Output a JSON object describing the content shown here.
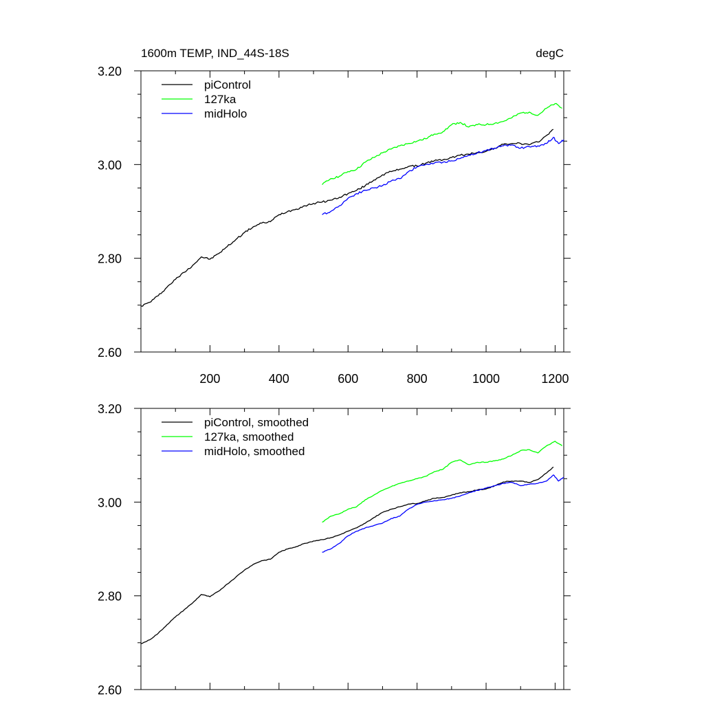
{
  "chart_data": [
    {
      "type": "line",
      "title": "1600m TEMP, IND_44S-18S",
      "units": "degC",
      "xlim": [
        0,
        1225
      ],
      "ylim": [
        2.6,
        3.2
      ],
      "xticks": [
        200,
        400,
        600,
        800,
        1000,
        1200
      ],
      "xtick_labels": [
        "200",
        "400",
        "600",
        "800",
        "1000",
        "1200"
      ],
      "yticks": [
        2.6,
        2.8,
        3.0,
        3.2
      ],
      "ytick_labels": [
        "2.60",
        "2.80",
        "3.00",
        "3.20"
      ],
      "legend_position": "top-left",
      "smoothed": false,
      "series": [
        {
          "name": "piControl",
          "color": "#000000",
          "x": [
            1,
            25,
            50,
            75,
            100,
            125,
            150,
            175,
            200,
            225,
            250,
            275,
            300,
            325,
            350,
            375,
            400,
            425,
            450,
            475,
            500,
            525,
            550,
            575,
            600,
            625,
            650,
            675,
            700,
            725,
            750,
            775,
            800,
            825,
            850,
            875,
            900,
            925,
            950,
            975,
            1000,
            1025,
            1050,
            1075,
            1100,
            1125,
            1150,
            1175,
            1195
          ],
          "values": [
            2.698,
            2.706,
            2.72,
            2.738,
            2.755,
            2.77,
            2.785,
            2.803,
            2.798,
            2.81,
            2.825,
            2.84,
            2.855,
            2.867,
            2.875,
            2.878,
            2.893,
            2.9,
            2.905,
            2.912,
            2.917,
            2.92,
            2.924,
            2.93,
            2.938,
            2.945,
            2.955,
            2.967,
            2.978,
            2.985,
            2.99,
            2.996,
            2.997,
            3.003,
            3.008,
            3.01,
            3.015,
            3.02,
            3.022,
            3.026,
            3.028,
            3.035,
            3.043,
            3.045,
            3.045,
            3.042,
            3.048,
            3.062,
            3.075
          ]
        },
        {
          "name": "127ka",
          "color": "#00ff00",
          "x": [
            525,
            550,
            575,
            600,
            625,
            650,
            675,
            700,
            725,
            750,
            775,
            800,
            825,
            850,
            875,
            900,
            925,
            950,
            975,
            1000,
            1025,
            1050,
            1075,
            1100,
            1125,
            1150,
            1175,
            1200,
            1220
          ],
          "values": [
            2.957,
            2.97,
            2.975,
            2.985,
            2.99,
            3.005,
            3.015,
            3.025,
            3.033,
            3.04,
            3.045,
            3.05,
            3.055,
            3.065,
            3.07,
            3.085,
            3.09,
            3.08,
            3.085,
            3.085,
            3.088,
            3.092,
            3.1,
            3.11,
            3.112,
            3.105,
            3.12,
            3.13,
            3.12
          ]
        },
        {
          "name": "midHolo",
          "color": "#0000ff",
          "x": [
            525,
            550,
            575,
            600,
            625,
            650,
            675,
            700,
            725,
            750,
            775,
            800,
            825,
            850,
            875,
            900,
            925,
            950,
            975,
            1000,
            1025,
            1050,
            1075,
            1100,
            1125,
            1150,
            1175,
            1195,
            1210,
            1225
          ],
          "values": [
            2.893,
            2.9,
            2.912,
            2.928,
            2.938,
            2.945,
            2.95,
            2.955,
            2.965,
            2.97,
            2.985,
            2.995,
            3.0,
            3.003,
            3.005,
            3.008,
            3.013,
            3.02,
            3.025,
            3.03,
            3.035,
            3.04,
            3.042,
            3.035,
            3.038,
            3.04,
            3.045,
            3.058,
            3.045,
            3.053
          ]
        }
      ]
    },
    {
      "type": "line",
      "xlim": [
        0,
        1225
      ],
      "ylim": [
        2.6,
        3.2
      ],
      "xticks": [
        200,
        400,
        600,
        800,
        1000,
        1200
      ],
      "yticks": [
        2.6,
        2.8,
        3.0,
        3.2
      ],
      "ytick_labels": [
        "2.60",
        "2.80",
        "3.00",
        "3.20"
      ],
      "legend_position": "top-left",
      "smoothed": true,
      "series": [
        {
          "name": "piControl, smoothed",
          "color": "#000000",
          "x": [
            1,
            25,
            50,
            75,
            100,
            125,
            150,
            175,
            200,
            225,
            250,
            275,
            300,
            325,
            350,
            375,
            400,
            425,
            450,
            475,
            500,
            525,
            550,
            575,
            600,
            625,
            650,
            675,
            700,
            725,
            750,
            775,
            800,
            825,
            850,
            875,
            900,
            925,
            950,
            975,
            1000,
            1025,
            1050,
            1075,
            1100,
            1125,
            1150,
            1175,
            1195
          ],
          "values": [
            2.698,
            2.706,
            2.72,
            2.738,
            2.755,
            2.77,
            2.785,
            2.803,
            2.798,
            2.81,
            2.825,
            2.84,
            2.855,
            2.867,
            2.875,
            2.878,
            2.893,
            2.9,
            2.905,
            2.912,
            2.917,
            2.92,
            2.924,
            2.93,
            2.938,
            2.945,
            2.955,
            2.967,
            2.978,
            2.985,
            2.99,
            2.996,
            2.997,
            3.003,
            3.008,
            3.01,
            3.015,
            3.02,
            3.022,
            3.026,
            3.028,
            3.035,
            3.043,
            3.045,
            3.045,
            3.042,
            3.048,
            3.062,
            3.075
          ]
        },
        {
          "name": "127ka, smoothed",
          "color": "#00ff00",
          "x": [
            525,
            550,
            575,
            600,
            625,
            650,
            675,
            700,
            725,
            750,
            775,
            800,
            825,
            850,
            875,
            900,
            925,
            950,
            975,
            1000,
            1025,
            1050,
            1075,
            1100,
            1125,
            1150,
            1175,
            1200,
            1220
          ],
          "values": [
            2.957,
            2.97,
            2.975,
            2.985,
            2.99,
            3.005,
            3.015,
            3.025,
            3.033,
            3.04,
            3.045,
            3.05,
            3.055,
            3.065,
            3.07,
            3.085,
            3.09,
            3.08,
            3.085,
            3.085,
            3.088,
            3.092,
            3.1,
            3.11,
            3.112,
            3.105,
            3.12,
            3.13,
            3.12
          ]
        },
        {
          "name": "midHolo, smoothed",
          "color": "#0000ff",
          "x": [
            525,
            550,
            575,
            600,
            625,
            650,
            675,
            700,
            725,
            750,
            775,
            800,
            825,
            850,
            875,
            900,
            925,
            950,
            975,
            1000,
            1025,
            1050,
            1075,
            1100,
            1125,
            1150,
            1175,
            1195,
            1210,
            1225
          ],
          "values": [
            2.893,
            2.9,
            2.912,
            2.928,
            2.938,
            2.945,
            2.95,
            2.955,
            2.965,
            2.97,
            2.985,
            2.995,
            3.0,
            3.003,
            3.005,
            3.008,
            3.013,
            3.02,
            3.025,
            3.03,
            3.035,
            3.04,
            3.042,
            3.035,
            3.038,
            3.04,
            3.045,
            3.058,
            3.045,
            3.053
          ]
        }
      ]
    }
  ]
}
